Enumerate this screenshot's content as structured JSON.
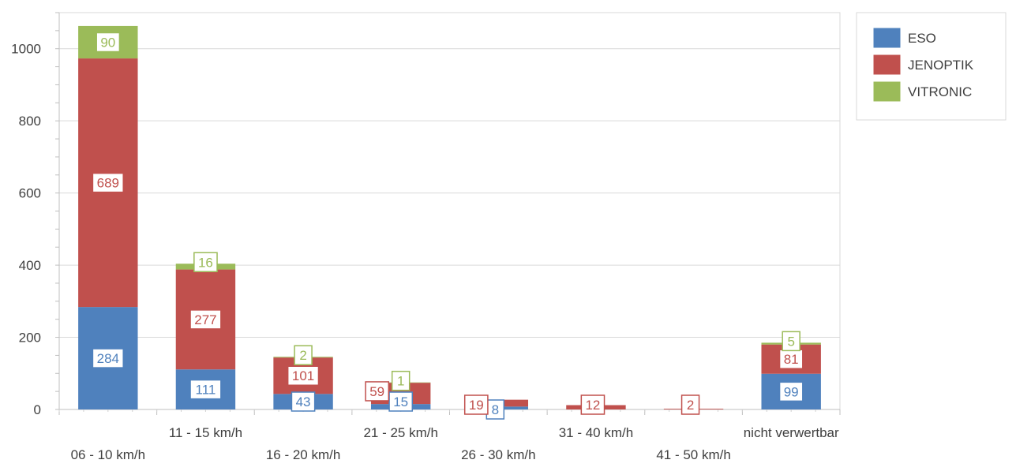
{
  "chart_data": {
    "type": "bar",
    "stacked": true,
    "categories": [
      "06 - 10 km/h",
      "11 - 15 km/h",
      "16 - 20 km/h",
      "21 - 25 km/h",
      "26 - 30 km/h",
      "31 - 40 km/h",
      "41 - 50 km/h",
      "nicht verwertbar"
    ],
    "series": [
      {
        "name": "ESO",
        "color": "#4f81bd",
        "values": [
          284,
          111,
          43,
          15,
          8,
          0,
          0,
          99
        ]
      },
      {
        "name": "JENOPTIK",
        "color": "#c0504d",
        "values": [
          689,
          277,
          101,
          59,
          19,
          12,
          2,
          81
        ]
      },
      {
        "name": "VITRONIC",
        "color": "#9bbb59",
        "values": [
          90,
          16,
          2,
          1,
          0,
          0,
          0,
          5
        ]
      }
    ],
    "data_labels": [
      [
        284,
        689,
        90
      ],
      [
        111,
        277,
        16
      ],
      [
        43,
        101,
        2
      ],
      [
        15,
        59,
        1
      ],
      [
        8,
        19,
        null
      ],
      [
        null,
        12,
        null
      ],
      [
        null,
        2,
        null
      ],
      [
        99,
        81,
        5
      ]
    ],
    "y_ticks": [
      0,
      200,
      400,
      600,
      800,
      1000
    ],
    "ylim": [
      0,
      1100
    ],
    "grid": true,
    "legend_position": "top-right"
  }
}
